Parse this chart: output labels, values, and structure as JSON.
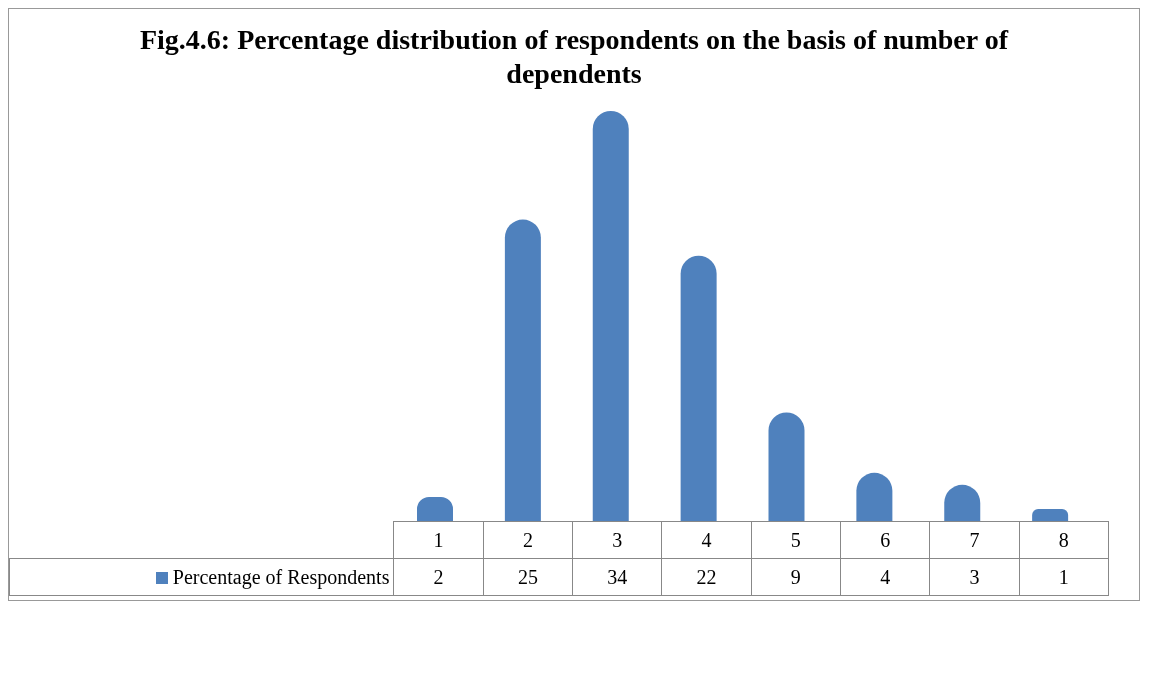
{
  "chart_data": {
    "type": "bar",
    "title": "Fig.4.6: Percentage distribution of respondents on the basis of number of dependents",
    "categories": [
      "1",
      "2",
      "3",
      "4",
      "5",
      "6",
      "7",
      "8"
    ],
    "series": [
      {
        "name": "Percentage of Respondents",
        "color": "#4f81bd",
        "values": [
          2,
          25,
          34,
          22,
          9,
          4,
          3,
          1
        ]
      }
    ],
    "data_labels": true,
    "legend": "bottom",
    "grid": false
  }
}
